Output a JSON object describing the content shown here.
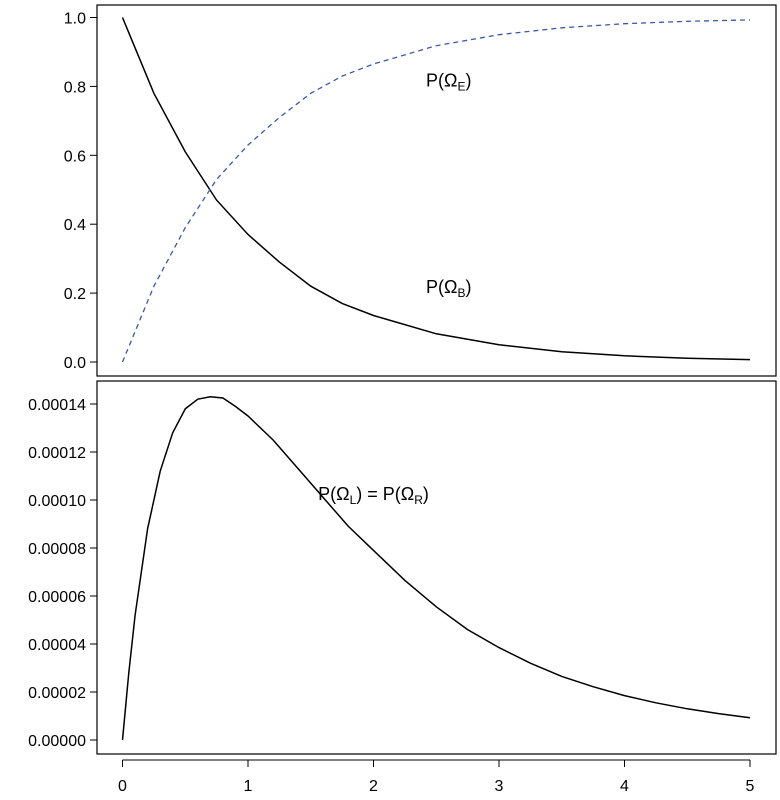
{
  "chart_data": [
    {
      "type": "line",
      "title": "",
      "xlabel": "",
      "ylabel": "",
      "xlim": [
        0,
        5
      ],
      "ylim": [
        0,
        1
      ],
      "yticks": [
        "0.0",
        "0.2",
        "0.4",
        "0.6",
        "0.8",
        "1.0"
      ],
      "ytick_values": [
        0,
        0.2,
        0.4,
        0.6,
        0.8,
        1.0
      ],
      "grid": false,
      "series": [
        {
          "label": "P(Ω_B)",
          "label_main": "P(Ω",
          "label_sub": "B",
          "label_end": ")",
          "color": "#000000",
          "style": "solid",
          "x": [
            0,
            0.25,
            0.5,
            0.75,
            1,
            1.25,
            1.5,
            1.75,
            2,
            2.5,
            3,
            3.5,
            4,
            4.5,
            5
          ],
          "y": [
            1.0,
            0.78,
            0.61,
            0.47,
            0.37,
            0.29,
            0.22,
            0.17,
            0.135,
            0.082,
            0.05,
            0.03,
            0.018,
            0.011,
            0.007
          ]
        },
        {
          "label": "P(Ω_E)",
          "label_main": "P(Ω",
          "label_sub": "E",
          "label_end": ")",
          "color": "#3a5aa8",
          "style": "dashed",
          "x": [
            0,
            0.25,
            0.5,
            0.75,
            1,
            1.25,
            1.5,
            1.75,
            2,
            2.5,
            3,
            3.5,
            4,
            4.5,
            5
          ],
          "y": [
            0.0,
            0.22,
            0.39,
            0.53,
            0.63,
            0.71,
            0.78,
            0.83,
            0.865,
            0.918,
            0.95,
            0.97,
            0.982,
            0.989,
            0.993
          ]
        }
      ],
      "annotations": [
        {
          "series": 1,
          "x": 2.6,
          "y": 0.8
        },
        {
          "series": 0,
          "x": 2.6,
          "y": 0.2
        }
      ]
    },
    {
      "type": "line",
      "title": "",
      "xlabel": "",
      "ylabel": "",
      "xlim": [
        0,
        5
      ],
      "ylim": [
        0,
        0.00014
      ],
      "xticks": [
        "0",
        "1",
        "2",
        "3",
        "4",
        "5"
      ],
      "xtick_values": [
        0,
        1,
        2,
        3,
        4,
        5
      ],
      "yticks": [
        "0.00000",
        "0.00002",
        "0.00004",
        "0.00006",
        "0.00008",
        "0.00010",
        "0.00012",
        "0.00014"
      ],
      "ytick_values": [
        0,
        2e-05,
        4e-05,
        6e-05,
        8e-05,
        0.0001,
        0.00012,
        0.00014
      ],
      "grid": false,
      "series": [
        {
          "label": "P(Ω_L) = P(Ω_R)",
          "color": "#000000",
          "style": "solid",
          "x": [
            0,
            0.05,
            0.1,
            0.2,
            0.3,
            0.4,
            0.5,
            0.6,
            0.7,
            0.8,
            0.9,
            1.0,
            1.2,
            1.4,
            1.6,
            1.8,
            2.0,
            2.25,
            2.5,
            2.75,
            3.0,
            3.25,
            3.5,
            3.75,
            4.0,
            4.25,
            4.5,
            4.75,
            5.0
          ],
          "y": [
            0.0,
            2.8e-05,
            5.2e-05,
            8.8e-05,
            0.000112,
            0.000128,
            0.000138,
            0.000142,
            0.000143,
            0.0001425,
            0.000139,
            0.000135,
            0.000125,
            0.000113,
            0.000101,
            8.9e-05,
            7.9e-05,
            6.65e-05,
            5.55e-05,
            4.6e-05,
            3.85e-05,
            3.2e-05,
            2.65e-05,
            2.22e-05,
            1.85e-05,
            1.55e-05,
            1.3e-05,
            1.1e-05,
            9.3e-06
          ]
        }
      ],
      "annotations": [
        {
          "series": 0,
          "x": 2.0,
          "y": 0.0001,
          "parts": [
            {
              "t": "P(Ω",
              "sub": false
            },
            {
              "t": "L",
              "sub": true
            },
            {
              "t": ") = P(Ω",
              "sub": false
            },
            {
              "t": "R",
              "sub": true
            },
            {
              "t": ")",
              "sub": false
            }
          ]
        }
      ]
    }
  ]
}
